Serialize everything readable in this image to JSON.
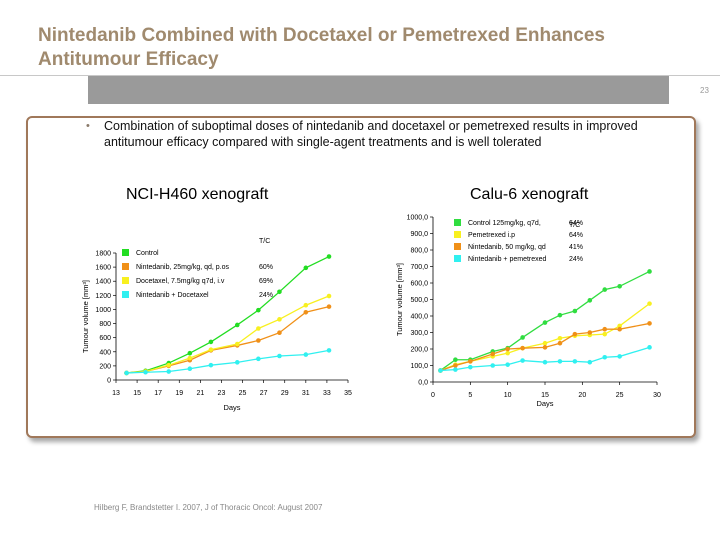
{
  "slide": {
    "title": "Nintedanib Combined with Docetaxel or Pemetrexed Enhances Antitumour Efficacy",
    "page_number": "23",
    "bullet_text": "Combination of suboptimal doses of nintedanib and docetaxel or pemetrexed results in improved antitumour efficacy compared with single-agent treatments and is well tolerated",
    "bullet_glyph": "•",
    "citation": "Hilberg F, Brandstetter I. 2007, J of Thoracic Oncol: August 2007"
  },
  "chart_data": [
    {
      "type": "line",
      "title": "NCI-H460 xenograft",
      "xlabel": "Days",
      "ylabel": "Tumour volume [mm³]",
      "xlim": [
        13,
        35
      ],
      "ylim": [
        0,
        1800
      ],
      "xticks": [
        13,
        15,
        17,
        19,
        21,
        23,
        25,
        27,
        29,
        31,
        33,
        35
      ],
      "yticks": [
        0,
        200,
        400,
        600,
        800,
        1000,
        1200,
        1400,
        1600,
        1800
      ],
      "ytick_labels": [
        "0",
        "200",
        "400",
        "600",
        "800",
        "1000",
        "1200",
        "1400",
        "1600",
        "1800"
      ],
      "legend_placement": "top-left",
      "legend_header": "T/C",
      "series": [
        {
          "name": "Control",
          "tc": "",
          "color": "#22dd22",
          "x": [
            14,
            15.8,
            18,
            20,
            22,
            24.5,
            26.5,
            28.5,
            31,
            33.2
          ],
          "y": [
            100,
            130,
            240,
            380,
            540,
            780,
            990,
            1250,
            1590,
            1750
          ]
        },
        {
          "name": "Nintedanib, 25mg/kg, qd, p.os",
          "tc": "60%",
          "color": "#f09018",
          "x": [
            14,
            15.8,
            18,
            20,
            22,
            24.5,
            26.5,
            28.5,
            31,
            33.2
          ],
          "y": [
            100,
            120,
            200,
            280,
            420,
            490,
            560,
            670,
            960,
            1040
          ]
        },
        {
          "name": "Docetaxel, 7.5mg/kg q7d, i.v",
          "tc": "69%",
          "color": "#f8f020",
          "x": [
            14,
            15.8,
            18,
            20,
            22,
            24.5,
            26.5,
            28.5,
            31,
            33.2
          ],
          "y": [
            100,
            120,
            210,
            310,
            430,
            510,
            730,
            860,
            1060,
            1190
          ]
        },
        {
          "name": "Nintedanib + Docetaxel",
          "tc": "24%",
          "color": "#30f0f0",
          "x": [
            14,
            15.8,
            18,
            20,
            22,
            24.5,
            26.5,
            28.5,
            31,
            33.2
          ],
          "y": [
            100,
            110,
            120,
            160,
            210,
            250,
            300,
            340,
            360,
            420
          ]
        }
      ]
    },
    {
      "type": "line",
      "title": "Calu-6 xenograft",
      "xlabel": "Days",
      "ylabel": "Tumour volume [mm³]",
      "xlim": [
        0,
        30
      ],
      "ylim": [
        0,
        1000
      ],
      "xticks": [
        0,
        5,
        10,
        15,
        20,
        25,
        30
      ],
      "yticks": [
        0,
        100,
        200,
        300,
        400,
        500,
        600,
        700,
        800,
        900,
        1000
      ],
      "ytick_labels": [
        "0,0",
        "100,0",
        "200,0",
        "300,0",
        "400,0",
        "500,0",
        "600,0",
        "700,0",
        "800,0",
        "900,0",
        "1000,0"
      ],
      "legend_placement": "top-left",
      "legend_header": "T/C",
      "series": [
        {
          "name": "Control 125mg/kg, q7d,",
          "tc": "64%",
          "color": "#30dd40",
          "x": [
            1,
            3,
            5,
            8,
            10,
            12,
            15,
            17,
            19,
            21,
            23,
            25,
            29
          ],
          "y": [
            70,
            135,
            135,
            185,
            205,
            270,
            360,
            405,
            430,
            495,
            560,
            580,
            670
          ]
        },
        {
          "name": "Pemetrexed i.p",
          "tc": "64%",
          "color": "#f8f020",
          "x": [
            1,
            3,
            5,
            8,
            10,
            12,
            15,
            17,
            19,
            21,
            23,
            25,
            29
          ],
          "y": [
            70,
            105,
            125,
            155,
            175,
            205,
            235,
            265,
            280,
            285,
            290,
            340,
            475
          ]
        },
        {
          "name": "Nintedanib, 50 mg/kg, qd",
          "tc": "41%",
          "color": "#f09018",
          "x": [
            1,
            3,
            5,
            8,
            10,
            12,
            15,
            17,
            19,
            21,
            23,
            25,
            29
          ],
          "y": [
            70,
            100,
            125,
            170,
            200,
            205,
            210,
            235,
            290,
            300,
            320,
            320,
            355
          ]
        },
        {
          "name": "Nintedanib + pemetrexed",
          "tc": "24%",
          "color": "#30f0f0",
          "x": [
            1,
            3,
            5,
            8,
            10,
            12,
            15,
            17,
            19,
            21,
            23,
            25,
            29
          ],
          "y": [
            70,
            75,
            90,
            100,
            105,
            130,
            120,
            125,
            125,
            120,
            150,
            155,
            210
          ]
        }
      ]
    }
  ]
}
